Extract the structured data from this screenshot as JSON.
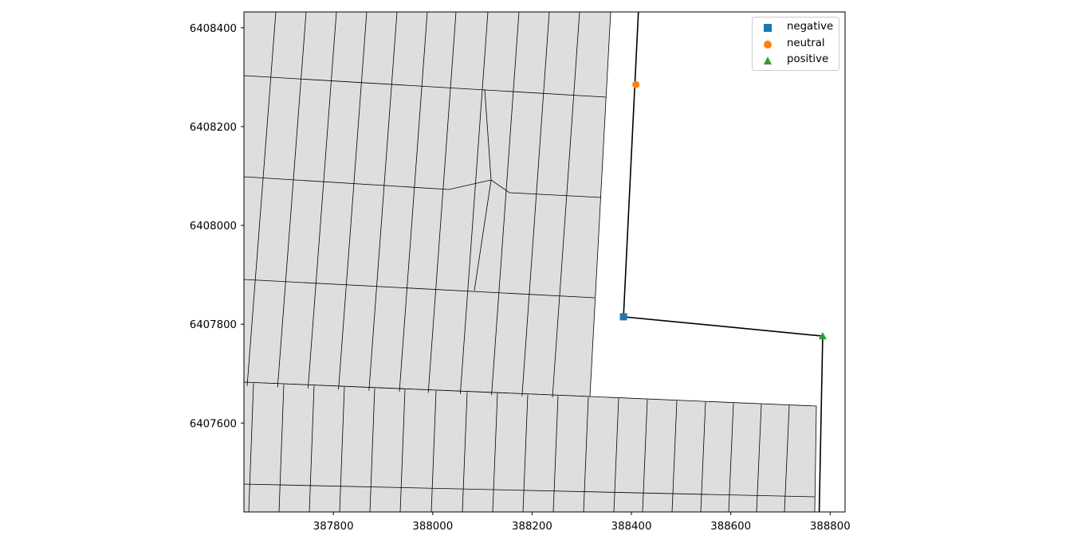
{
  "chart_data": {
    "type": "map",
    "xlim": [
      387620,
      388830
    ],
    "ylim": [
      6407420,
      6408432
    ],
    "x_ticks": [
      387800,
      388000,
      388200,
      388400,
      388600,
      388800
    ],
    "y_ticks": [
      6407600,
      6407800,
      6408000,
      6408200,
      6408400
    ],
    "x_tick_labels": [
      "387800",
      "388000",
      "388200",
      "388400",
      "388600",
      "388800"
    ],
    "y_tick_labels": [
      "6407600",
      "6407800",
      "6408000",
      "6408200",
      "6408400"
    ],
    "grid": false,
    "legend_placement": "top-right",
    "parcel_fill": "#dedede",
    "parcel_edge": "#000000",
    "path_color": "#000000",
    "legend": [
      {
        "label": "negative",
        "color": "#1f77b4",
        "marker": "square"
      },
      {
        "label": "neutral",
        "color": "#ff7f0e",
        "marker": "circle"
      },
      {
        "label": "positive",
        "color": "#2ca02c",
        "marker": "triangle"
      }
    ],
    "points": [
      {
        "label": "negative",
        "x": 388384,
        "y": 6407815
      },
      {
        "label": "neutral",
        "x": 388409,
        "y": 6408285
      },
      {
        "label": "positive",
        "x": 388785,
        "y": 6407776
      }
    ],
    "path": [
      [
        388414,
        6408432
      ],
      [
        388384,
        6407815
      ],
      [
        388785,
        6407776
      ],
      [
        388778,
        6407420
      ]
    ]
  }
}
